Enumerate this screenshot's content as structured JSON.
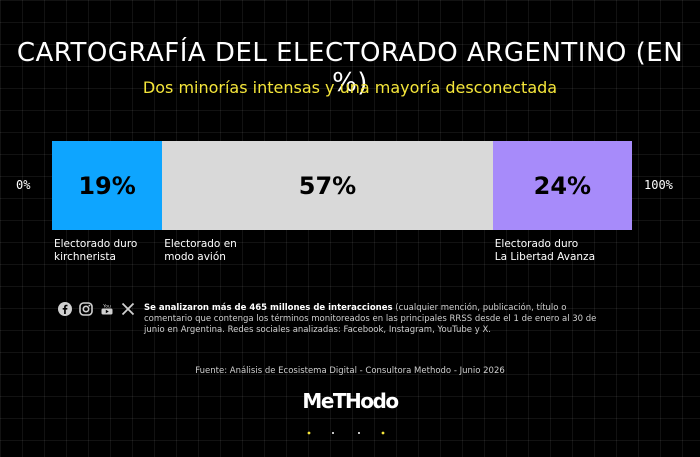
{
  "title": "CARTOGRAFÍA DEL ELECTORADO ARGENTINO (EN %)",
  "subtitle": "Dos minorías intensas y una mayoría desconectada",
  "axis": {
    "min_label": "0%",
    "max_label": "100%"
  },
  "chart_data": {
    "type": "bar",
    "orientation": "horizontal-stacked",
    "xlim": [
      0,
      100
    ],
    "categories": [
      "Electorado duro kirchnerista",
      "Electorado en modo avión",
      "Electorado duro La Libertad Avanza"
    ],
    "values": [
      19,
      57,
      24
    ],
    "value_labels": [
      "19%",
      "57%",
      "24%"
    ],
    "segment_labels": [
      "Electorado duro\nkirchnerista",
      "Electorado en\nmodo avión",
      "Electorado duro\nLa Libertad Avanza"
    ],
    "colors": [
      "#0ea5ff",
      "#d9d9d9",
      "#a78bfa"
    ]
  },
  "social_icons": [
    "facebook-icon",
    "instagram-icon",
    "youtube-icon",
    "x-icon"
  ],
  "note": {
    "bold": "Se analizaron más de 465 millones de interacciones",
    "rest": " (cualquier mención, publicación, título o comentario que contenga los términos monitoreados en las principales RRSS desde el 1 de enero al 30 de junio en Argentina. Redes sociales analizadas: Facebook, Instagram, YouTube y X."
  },
  "source": "Fuente: Análisis de Ecosistema Digital - Consultora Methodo - Junio 2026",
  "logo": "METHODO"
}
